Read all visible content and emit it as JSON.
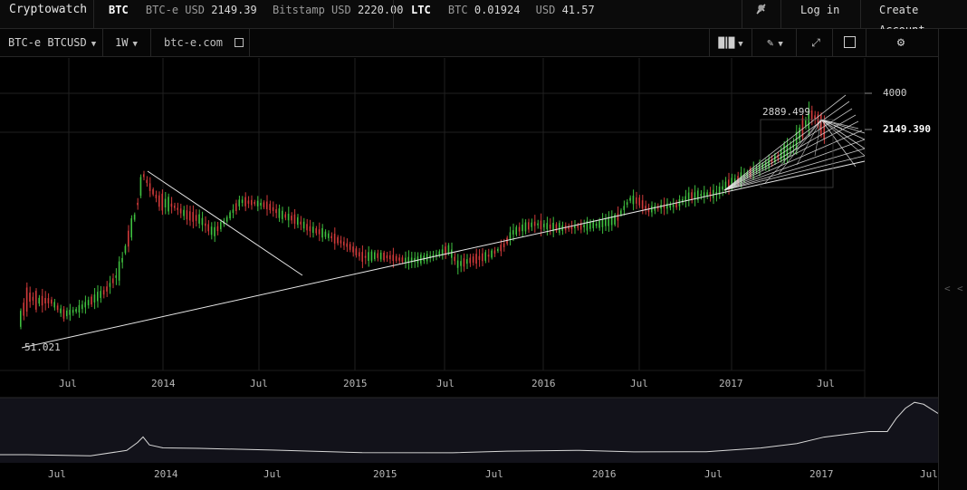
{
  "topbar": {
    "brand": "Cryptowatch",
    "btc": {
      "label": "BTC",
      "q1_exchange": "BTC-e USD",
      "q1_price": "2149.39",
      "q2_exchange": "Bitstamp USD",
      "q2_price": "2220.00"
    },
    "ltc": {
      "label": "LTC",
      "q1_exchange": "BTC",
      "q1_price": "0.01924",
      "q2_exchange": "USD",
      "q2_price": "41.57"
    },
    "notifications_icon": "bell-icon",
    "login_label": "Log in",
    "create_account_label": "Create Account"
  },
  "toolbar": {
    "market_selector": "BTC-e BTCUSD",
    "period_selector": "1W",
    "exchange_link": "btc-e.com",
    "icons": [
      "candles-icon",
      "pencil-icon",
      "fullscreen-icon",
      "chart-icon",
      "gear-icon"
    ]
  },
  "chart": {
    "price_axis": {
      "labels": [
        "4000",
        "2149.390"
      ],
      "current_price": "2149.390"
    },
    "high_label": "2889.499",
    "low_label": "51.021",
    "time_axis": [
      "Jul",
      "2014",
      "Jul",
      "2015",
      "Jul",
      "2016",
      "Jul",
      "2017",
      "Jul"
    ]
  },
  "navigator": {
    "time_axis": [
      "Jul",
      "2014",
      "Jul",
      "2015",
      "Jul",
      "2016",
      "Jul",
      "2017",
      "Jul"
    ]
  },
  "chart_data": {
    "type": "candlestick",
    "interval": "1W",
    "market": "BTC-e BTCUSD",
    "current_price": 2149.39,
    "price_axis_labels": [
      4000,
      2149.39
    ],
    "high": 2889.499,
    "low": 51.021,
    "x_tick_labels": [
      "Jul",
      "2014",
      "Jul",
      "2015",
      "Jul",
      "2016",
      "Jul",
      "2017",
      "Jul"
    ],
    "scale": "log",
    "colors": {
      "up": "#3fbf3f",
      "down": "#d03a3a",
      "drawing": "#e8e8e8",
      "grid": "#202020"
    },
    "grid": true
  }
}
